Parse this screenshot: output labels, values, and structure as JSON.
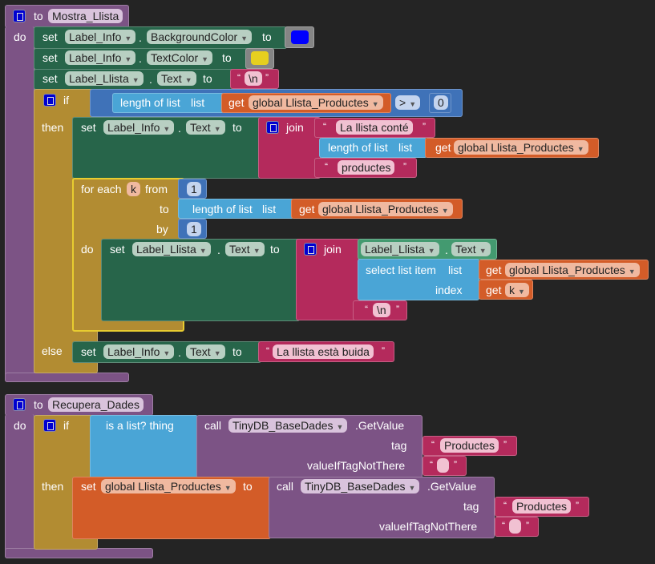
{
  "kw": {
    "to": "to",
    "do": "do",
    "set": "set",
    "if": "if",
    "then": "then",
    "else": "else",
    "get": "get",
    "join": "join",
    "dot": ".",
    "length_of_list": "length of list",
    "list": "list",
    "for_each": "for each",
    "from": "from",
    "by": "by",
    "select_list_item": "select list item",
    "index": "index",
    "is_a_list": "is a list?  thing",
    "call": "call",
    "getvalue": ".GetValue",
    "tag": "tag",
    "valueIfTagNotThere": "valueIfTagNotThere",
    "open_quote": "“",
    "close_quote": "”"
  },
  "proc1": {
    "name": "Mostra_Llista",
    "set1": {
      "component": "Label_Info",
      "property": "BackgroundColor",
      "color": "#0000ff"
    },
    "set2": {
      "component": "Label_Info",
      "property": "TextColor",
      "color": "#e6cf1f"
    },
    "set3": {
      "component": "Label_Llista",
      "property": "Text",
      "text": "\\n"
    },
    "if": {
      "variable": "global Llista_Productes",
      "operator": ">",
      "number": "0"
    },
    "then_set": {
      "component": "Label_Info",
      "property": "Text",
      "str1": "La llista conté",
      "variable": "global Llista_Productes",
      "str2": "productes"
    },
    "foreach": {
      "var": "k",
      "from": "1",
      "variable": "global Llista_Productes",
      "by": "1",
      "set": {
        "component": "Label_Llista",
        "property": "Text",
        "getter_component": "Label_Llista",
        "getter_property": "Text",
        "list_var": "global Llista_Productes",
        "index_var": "k",
        "str": "\\n"
      }
    },
    "else_set": {
      "component": "Label_Info",
      "property": "Text",
      "text": "La llista està buida"
    }
  },
  "proc2": {
    "name": "Recupera_Dades",
    "if": {
      "component": "TinyDB_BaseDades",
      "tag": "Productes",
      "default": " "
    },
    "then_set": {
      "variable": "global Llista_Productes",
      "component": "TinyDB_BaseDades",
      "tag": "Productes",
      "default": " "
    }
  },
  "colors": {
    "procedure": "#7c5385",
    "setter": "#27654a",
    "control": "#b28c32",
    "list": "#4aa5d6",
    "variable": "#d35c28",
    "text": "#b42a5c",
    "math": "#3f72b8"
  }
}
